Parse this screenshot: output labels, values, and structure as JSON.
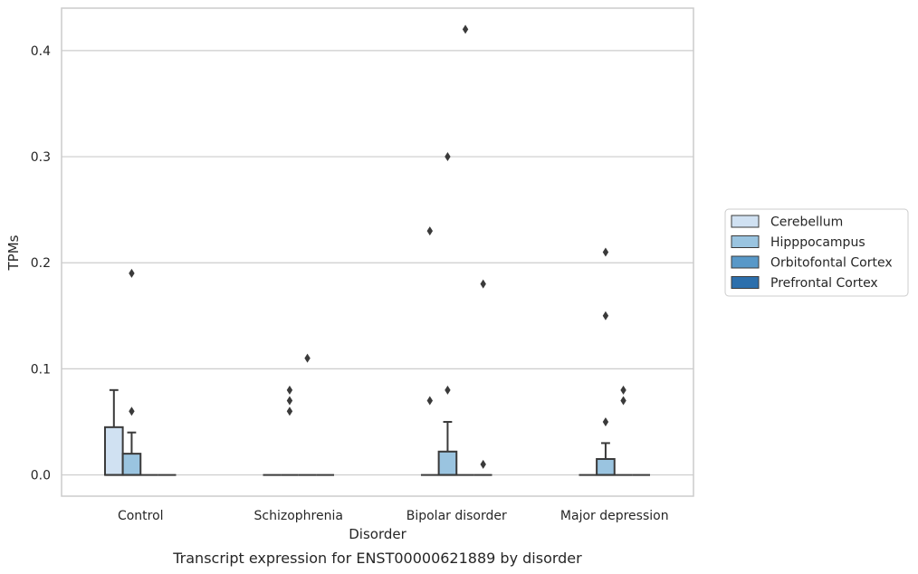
{
  "chart_data": {
    "type": "boxplot",
    "title": "Transcript expression for ENST00000621889 by disorder",
    "xlabel": "Disorder",
    "ylabel": "TPMs",
    "ylim": [
      -0.02,
      0.44
    ],
    "yticks": [
      0.0,
      0.1,
      0.2,
      0.3,
      0.4
    ],
    "ytick_labels": [
      "0.0",
      "0.1",
      "0.2",
      "0.3",
      "0.4"
    ],
    "grid": "horizontal",
    "legend_position": "right",
    "categories": [
      "Control",
      "Schizophrenia",
      "Bipolar disorder",
      "Major depression"
    ],
    "series": [
      {
        "name": "Cerebellum",
        "color": "#d0e1f2",
        "boxes": [
          {
            "q1": 0.0,
            "median": 0.0,
            "q3": 0.045,
            "whisker_low": 0.0,
            "whisker_high": 0.08,
            "outliers": []
          },
          {
            "q1": 0.0,
            "median": 0.0,
            "q3": 0.0,
            "whisker_low": 0.0,
            "whisker_high": 0.0,
            "outliers": []
          },
          {
            "q1": 0.0,
            "median": 0.0,
            "q3": 0.0,
            "whisker_low": 0.0,
            "whisker_high": 0.0,
            "outliers": [
              0.07,
              0.23
            ]
          },
          {
            "q1": 0.0,
            "median": 0.0,
            "q3": 0.0,
            "whisker_low": 0.0,
            "whisker_high": 0.0,
            "outliers": []
          }
        ]
      },
      {
        "name": "Hipppocampus",
        "color": "#9ac4e0",
        "boxes": [
          {
            "q1": 0.0,
            "median": 0.0,
            "q3": 0.02,
            "whisker_low": 0.0,
            "whisker_high": 0.04,
            "outliers": [
              0.06,
              0.19
            ]
          },
          {
            "q1": 0.0,
            "median": 0.0,
            "q3": 0.0,
            "whisker_low": 0.0,
            "whisker_high": 0.0,
            "outliers": [
              0.06,
              0.07,
              0.08
            ]
          },
          {
            "q1": 0.0,
            "median": 0.0,
            "q3": 0.022,
            "whisker_low": 0.0,
            "whisker_high": 0.05,
            "outliers": [
              0.08,
              0.3
            ]
          },
          {
            "q1": 0.0,
            "median": 0.0,
            "q3": 0.015,
            "whisker_low": 0.0,
            "whisker_high": 0.03,
            "outliers": [
              0.05,
              0.15,
              0.21
            ]
          }
        ]
      },
      {
        "name": "Orbitofontal Cortex",
        "color": "#5898c8",
        "boxes": [
          {
            "q1": 0.0,
            "median": 0.0,
            "q3": 0.0,
            "whisker_low": 0.0,
            "whisker_high": 0.0,
            "outliers": []
          },
          {
            "q1": 0.0,
            "median": 0.0,
            "q3": 0.0,
            "whisker_low": 0.0,
            "whisker_high": 0.0,
            "outliers": [
              0.11
            ]
          },
          {
            "q1": 0.0,
            "median": 0.0,
            "q3": 0.0,
            "whisker_low": 0.0,
            "whisker_high": 0.0,
            "outliers": [
              0.42
            ]
          },
          {
            "q1": 0.0,
            "median": 0.0,
            "q3": 0.0,
            "whisker_low": 0.0,
            "whisker_high": 0.0,
            "outliers": [
              0.07,
              0.08
            ]
          }
        ]
      },
      {
        "name": "Prefrontal Cortex",
        "color": "#2c6fac",
        "boxes": [
          {
            "q1": 0.0,
            "median": 0.0,
            "q3": 0.0,
            "whisker_low": 0.0,
            "whisker_high": 0.0,
            "outliers": []
          },
          {
            "q1": 0.0,
            "median": 0.0,
            "q3": 0.0,
            "whisker_low": 0.0,
            "whisker_high": 0.0,
            "outliers": []
          },
          {
            "q1": 0.0,
            "median": 0.0,
            "q3": 0.0,
            "whisker_low": 0.0,
            "whisker_high": 0.0,
            "outliers": [
              0.01,
              0.18
            ]
          },
          {
            "q1": 0.0,
            "median": 0.0,
            "q3": 0.0,
            "whisker_low": 0.0,
            "whisker_high": 0.0,
            "outliers": []
          }
        ]
      }
    ]
  }
}
